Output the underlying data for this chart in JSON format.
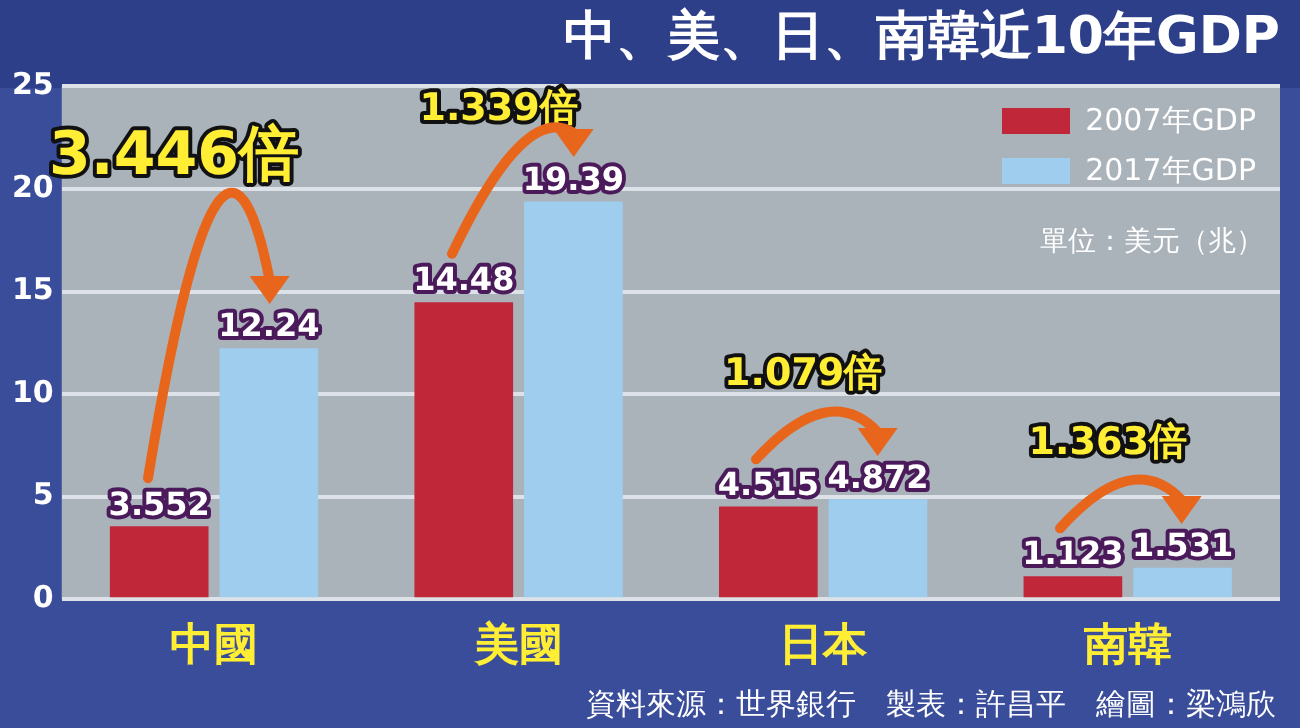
{
  "chart_data": {
    "type": "bar",
    "title": "中、美、日、南韓近10年GDP",
    "categories": [
      "中國",
      "美國",
      "日本",
      "南韓"
    ],
    "series": [
      {
        "name": "2007年GDP",
        "color": "#c0283a",
        "values": [
          3.552,
          14.48,
          4.515,
          1.123
        ]
      },
      {
        "name": "2017年GDP",
        "color": "#9fcdee",
        "values": [
          12.24,
          19.39,
          4.872,
          1.531
        ]
      }
    ],
    "ylim": [
      0,
      25
    ],
    "yticks": [
      0,
      5,
      10,
      15,
      20,
      25
    ],
    "grid": "y",
    "legend": "top right",
    "data_labels": true,
    "annotations": [
      "3.446倍",
      "1.339倍",
      "1.079倍",
      "1.363倍",
      "單位：美元（兆）",
      "資料來源：世界銀行　製表：許昌平　繪圖：梁鴻欣"
    ]
  }
}
